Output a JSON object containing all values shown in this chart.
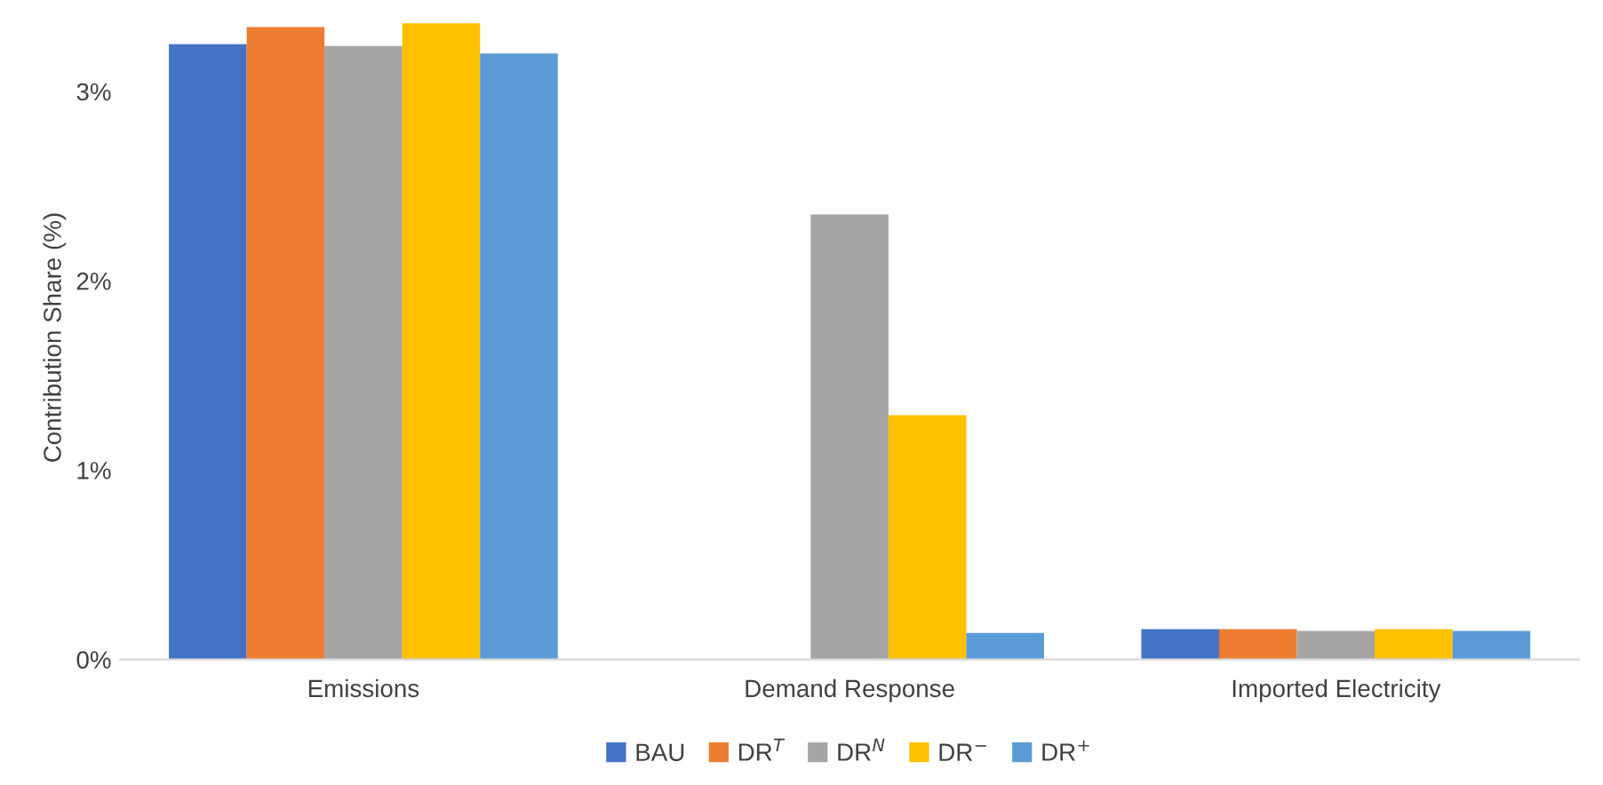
{
  "chart_data": {
    "type": "bar",
    "ylabel": "Contribution Share (%)",
    "categories": [
      "Emissions",
      "Demand Response",
      "Imported Electricity"
    ],
    "series": [
      {
        "name": "BAU",
        "color": "#4472c4",
        "values": [
          3.25,
          0,
          0.16
        ]
      },
      {
        "name": "DR$^{T}$",
        "color": "#ed7d31",
        "values": [
          3.34,
          0,
          0.16
        ]
      },
      {
        "name": "DR$^{N}$",
        "color": "#a5a5a5",
        "values": [
          3.24,
          2.35,
          0.15
        ]
      },
      {
        "name": "DR$^{−}$",
        "color": "#ffc000",
        "values": [
          3.36,
          1.29,
          0.16
        ]
      },
      {
        "name": "DR$^{+}$",
        "color": "#5b9bd5",
        "values": [
          3.2,
          0.14,
          0.15
        ]
      }
    ],
    "ylim": [
      0,
      3.4
    ],
    "yticks": [
      {
        "value": 0,
        "label": "0%"
      },
      {
        "value": 1,
        "label": "1%"
      },
      {
        "value": 2,
        "label": "2%"
      },
      {
        "value": 3,
        "label": "3%"
      }
    ],
    "grid": false,
    "legend": "bottom"
  }
}
